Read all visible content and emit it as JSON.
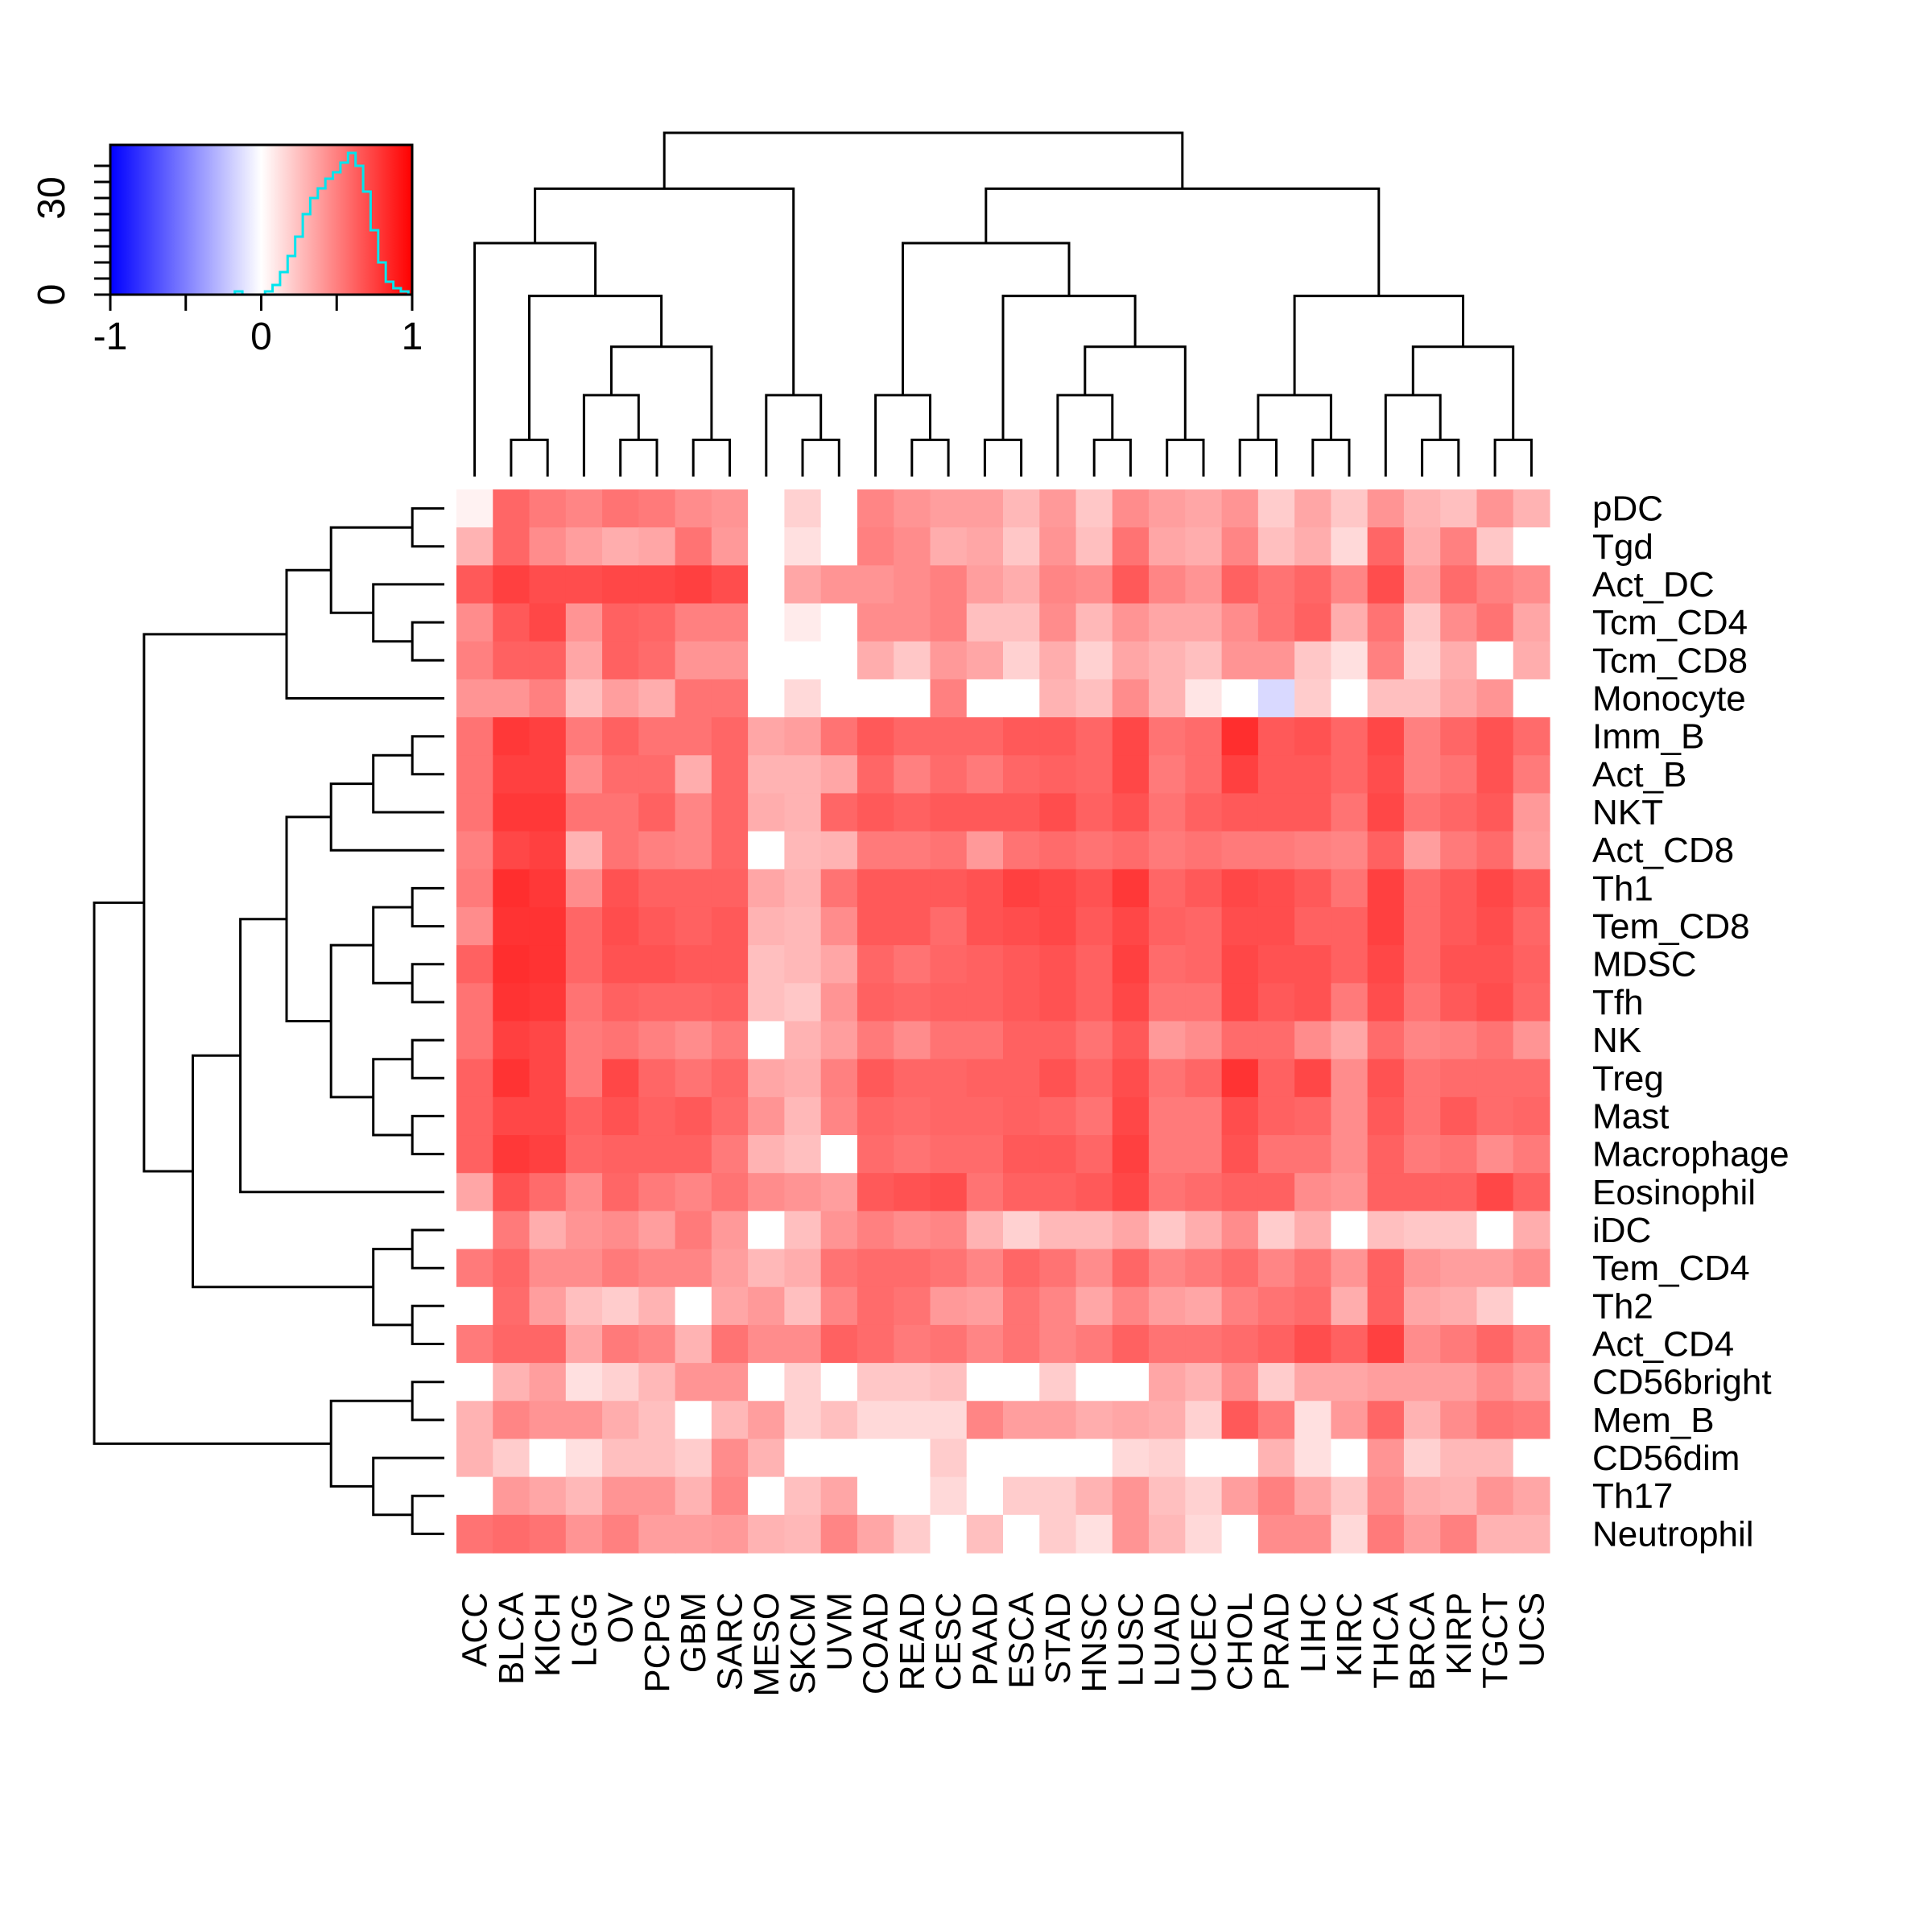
{
  "chart_data": {
    "type": "heatmap",
    "title": "",
    "columns": [
      "ACC",
      "BLCA",
      "KICH",
      "LGG",
      "OV",
      "PCPG",
      "GBM",
      "SARC",
      "MESO",
      "SKCM",
      "UVM",
      "COAD",
      "READ",
      "CESC",
      "PAAD",
      "ESCA",
      "STAD",
      "HNSC",
      "LUSC",
      "LUAD",
      "UCEC",
      "CHOL",
      "PRAD",
      "LIHC",
      "KIRC",
      "THCA",
      "BRCA",
      "KIRP",
      "TGCT",
      "UCS"
    ],
    "rows": [
      "pDC",
      "Tgd",
      "Act_DC",
      "Tcm_CD4",
      "Tcm_CD8",
      "Monocyte",
      "Imm_B",
      "Act_B",
      "NKT",
      "Act_CD8",
      "Th1",
      "Tem_CD8",
      "MDSC",
      "Tfh",
      "NK",
      "Treg",
      "Mast",
      "Macrophage",
      "Eosinophil",
      "iDC",
      "Tem_CD4",
      "Th2",
      "Act_CD4",
      "CD56bright",
      "Mem_B",
      "CD56dim",
      "Th17",
      "Neutrophil"
    ],
    "values": [
      [
        0.05,
        0.6,
        0.52,
        0.48,
        0.55,
        0.52,
        0.45,
        0.42,
        0.0,
        0.18,
        0.0,
        0.48,
        0.42,
        0.38,
        0.38,
        0.28,
        0.4,
        0.22,
        0.45,
        0.38,
        0.35,
        0.42,
        0.2,
        0.35,
        0.22,
        0.42,
        0.3,
        0.25,
        0.42,
        0.3
      ],
      [
        0.3,
        0.6,
        0.45,
        0.38,
        0.32,
        0.35,
        0.55,
        0.4,
        0.0,
        0.12,
        0.0,
        0.5,
        0.45,
        0.32,
        0.35,
        0.22,
        0.42,
        0.25,
        0.55,
        0.35,
        0.32,
        0.48,
        0.25,
        0.32,
        0.15,
        0.6,
        0.32,
        0.5,
        0.22,
        0.0
      ],
      [
        0.65,
        0.75,
        0.7,
        0.7,
        0.72,
        0.72,
        0.75,
        0.7,
        0.0,
        0.35,
        0.42,
        0.42,
        0.45,
        0.5,
        0.38,
        0.32,
        0.48,
        0.45,
        0.65,
        0.48,
        0.42,
        0.62,
        0.55,
        0.6,
        0.48,
        0.7,
        0.38,
        0.58,
        0.5,
        0.45
      ],
      [
        0.45,
        0.65,
        0.72,
        0.42,
        0.62,
        0.6,
        0.5,
        0.5,
        0.0,
        0.08,
        0.0,
        0.45,
        0.45,
        0.5,
        0.25,
        0.25,
        0.45,
        0.28,
        0.42,
        0.35,
        0.35,
        0.45,
        0.55,
        0.62,
        0.32,
        0.55,
        0.22,
        0.45,
        0.55,
        0.35
      ],
      [
        0.5,
        0.62,
        0.62,
        0.35,
        0.62,
        0.58,
        0.42,
        0.42,
        0.0,
        0.0,
        0.0,
        0.32,
        0.22,
        0.4,
        0.35,
        0.18,
        0.32,
        0.18,
        0.35,
        0.3,
        0.25,
        0.42,
        0.42,
        0.22,
        0.12,
        0.5,
        0.18,
        0.32,
        0.0,
        0.32
      ],
      [
        0.42,
        0.42,
        0.5,
        0.25,
        0.38,
        0.32,
        0.55,
        0.55,
        0.0,
        0.15,
        0.0,
        0.0,
        0.0,
        0.5,
        0.0,
        0.0,
        0.3,
        0.25,
        0.45,
        0.3,
        0.1,
        0.0,
        -0.15,
        0.2,
        0.0,
        0.25,
        0.25,
        0.35,
        0.42,
        0.0
      ],
      [
        0.55,
        0.78,
        0.75,
        0.52,
        0.62,
        0.55,
        0.55,
        0.6,
        0.35,
        0.38,
        0.55,
        0.65,
        0.6,
        0.6,
        0.6,
        0.65,
        0.65,
        0.6,
        0.72,
        0.55,
        0.58,
        0.82,
        0.65,
        0.68,
        0.6,
        0.72,
        0.5,
        0.6,
        0.68,
        0.58
      ],
      [
        0.55,
        0.75,
        0.75,
        0.45,
        0.58,
        0.58,
        0.32,
        0.6,
        0.3,
        0.3,
        0.35,
        0.6,
        0.5,
        0.58,
        0.52,
        0.6,
        0.62,
        0.6,
        0.72,
        0.52,
        0.58,
        0.75,
        0.65,
        0.65,
        0.6,
        0.7,
        0.5,
        0.55,
        0.68,
        0.52
      ],
      [
        0.55,
        0.78,
        0.78,
        0.55,
        0.55,
        0.62,
        0.48,
        0.6,
        0.32,
        0.3,
        0.6,
        0.65,
        0.62,
        0.65,
        0.65,
        0.65,
        0.7,
        0.62,
        0.68,
        0.55,
        0.62,
        0.65,
        0.65,
        0.65,
        0.55,
        0.72,
        0.55,
        0.6,
        0.65,
        0.4
      ],
      [
        0.5,
        0.72,
        0.75,
        0.3,
        0.55,
        0.5,
        0.48,
        0.6,
        0.0,
        0.28,
        0.3,
        0.52,
        0.52,
        0.55,
        0.4,
        0.55,
        0.58,
        0.55,
        0.58,
        0.52,
        0.55,
        0.52,
        0.52,
        0.5,
        0.48,
        0.62,
        0.38,
        0.52,
        0.58,
        0.38
      ],
      [
        0.52,
        0.82,
        0.78,
        0.45,
        0.68,
        0.62,
        0.62,
        0.62,
        0.35,
        0.3,
        0.55,
        0.65,
        0.65,
        0.65,
        0.68,
        0.75,
        0.72,
        0.68,
        0.78,
        0.6,
        0.65,
        0.72,
        0.7,
        0.65,
        0.55,
        0.75,
        0.58,
        0.65,
        0.72,
        0.65
      ],
      [
        0.45,
        0.8,
        0.8,
        0.6,
        0.7,
        0.65,
        0.62,
        0.65,
        0.3,
        0.28,
        0.45,
        0.65,
        0.65,
        0.58,
        0.68,
        0.7,
        0.72,
        0.65,
        0.72,
        0.62,
        0.6,
        0.7,
        0.7,
        0.62,
        0.62,
        0.75,
        0.58,
        0.65,
        0.7,
        0.6
      ],
      [
        0.62,
        0.82,
        0.8,
        0.6,
        0.68,
        0.68,
        0.65,
        0.65,
        0.25,
        0.28,
        0.35,
        0.6,
        0.55,
        0.6,
        0.62,
        0.65,
        0.68,
        0.62,
        0.75,
        0.58,
        0.6,
        0.72,
        0.68,
        0.68,
        0.62,
        0.72,
        0.58,
        0.68,
        0.68,
        0.62
      ],
      [
        0.55,
        0.8,
        0.78,
        0.55,
        0.62,
        0.6,
        0.6,
        0.62,
        0.25,
        0.22,
        0.42,
        0.62,
        0.6,
        0.62,
        0.62,
        0.65,
        0.68,
        0.62,
        0.72,
        0.55,
        0.55,
        0.72,
        0.65,
        0.68,
        0.52,
        0.7,
        0.55,
        0.65,
        0.7,
        0.6
      ],
      [
        0.55,
        0.75,
        0.72,
        0.52,
        0.55,
        0.5,
        0.45,
        0.52,
        0.0,
        0.3,
        0.38,
        0.52,
        0.45,
        0.55,
        0.55,
        0.62,
        0.62,
        0.55,
        0.65,
        0.4,
        0.45,
        0.58,
        0.58,
        0.45,
        0.35,
        0.58,
        0.48,
        0.5,
        0.55,
        0.42
      ],
      [
        0.62,
        0.8,
        0.72,
        0.52,
        0.72,
        0.6,
        0.55,
        0.6,
        0.35,
        0.32,
        0.5,
        0.65,
        0.6,
        0.6,
        0.62,
        0.62,
        0.68,
        0.6,
        0.7,
        0.55,
        0.6,
        0.8,
        0.62,
        0.72,
        0.45,
        0.68,
        0.55,
        0.58,
        0.58,
        0.58
      ],
      [
        0.62,
        0.72,
        0.72,
        0.62,
        0.68,
        0.62,
        0.65,
        0.58,
        0.42,
        0.28,
        0.48,
        0.6,
        0.58,
        0.6,
        0.6,
        0.62,
        0.6,
        0.55,
        0.72,
        0.52,
        0.52,
        0.7,
        0.62,
        0.6,
        0.45,
        0.65,
        0.55,
        0.65,
        0.58,
        0.6
      ],
      [
        0.62,
        0.78,
        0.75,
        0.6,
        0.62,
        0.62,
        0.62,
        0.52,
        0.3,
        0.25,
        0.0,
        0.58,
        0.55,
        0.58,
        0.58,
        0.65,
        0.65,
        0.6,
        0.75,
        0.52,
        0.52,
        0.68,
        0.55,
        0.55,
        0.45,
        0.62,
        0.52,
        0.55,
        0.45,
        0.52
      ],
      [
        0.35,
        0.68,
        0.58,
        0.45,
        0.6,
        0.52,
        0.48,
        0.55,
        0.45,
        0.42,
        0.38,
        0.65,
        0.68,
        0.7,
        0.55,
        0.62,
        0.62,
        0.65,
        0.72,
        0.55,
        0.58,
        0.62,
        0.62,
        0.45,
        0.42,
        0.62,
        0.62,
        0.62,
        0.72,
        0.62
      ],
      [
        0.0,
        0.52,
        0.32,
        0.42,
        0.45,
        0.38,
        0.52,
        0.4,
        0.0,
        0.25,
        0.42,
        0.5,
        0.45,
        0.48,
        0.3,
        0.18,
        0.28,
        0.28,
        0.35,
        0.22,
        0.32,
        0.45,
        0.2,
        0.32,
        0.0,
        0.25,
        0.22,
        0.22,
        0.0,
        0.32
      ],
      [
        0.52,
        0.6,
        0.45,
        0.45,
        0.52,
        0.48,
        0.48,
        0.38,
        0.28,
        0.32,
        0.55,
        0.58,
        0.58,
        0.55,
        0.48,
        0.6,
        0.55,
        0.45,
        0.6,
        0.48,
        0.52,
        0.58,
        0.48,
        0.55,
        0.42,
        0.62,
        0.42,
        0.38,
        0.38,
        0.45
      ],
      [
        0.0,
        0.58,
        0.38,
        0.25,
        0.2,
        0.3,
        0.0,
        0.35,
        0.4,
        0.25,
        0.48,
        0.58,
        0.55,
        0.4,
        0.38,
        0.55,
        0.48,
        0.35,
        0.48,
        0.38,
        0.35,
        0.5,
        0.55,
        0.58,
        0.32,
        0.62,
        0.35,
        0.32,
        0.2,
        0.0
      ],
      [
        0.52,
        0.6,
        0.6,
        0.35,
        0.52,
        0.48,
        0.3,
        0.55,
        0.45,
        0.45,
        0.62,
        0.58,
        0.52,
        0.55,
        0.48,
        0.55,
        0.48,
        0.52,
        0.62,
        0.55,
        0.55,
        0.58,
        0.62,
        0.7,
        0.62,
        0.75,
        0.45,
        0.52,
        0.6,
        0.5
      ],
      [
        0.0,
        0.3,
        0.38,
        0.12,
        0.18,
        0.28,
        0.42,
        0.42,
        0.0,
        0.18,
        0.0,
        0.22,
        0.22,
        0.25,
        0.0,
        0.0,
        0.2,
        0.0,
        0.0,
        0.35,
        0.3,
        0.45,
        0.2,
        0.35,
        0.35,
        0.38,
        0.38,
        0.38,
        0.45,
        0.38
      ],
      [
        0.3,
        0.48,
        0.42,
        0.42,
        0.32,
        0.25,
        0.0,
        0.28,
        0.38,
        0.18,
        0.25,
        0.15,
        0.15,
        0.15,
        0.48,
        0.38,
        0.38,
        0.32,
        0.35,
        0.32,
        0.18,
        0.65,
        0.52,
        0.12,
        0.4,
        0.6,
        0.3,
        0.45,
        0.55,
        0.52
      ],
      [
        0.3,
        0.2,
        0.0,
        0.12,
        0.25,
        0.25,
        0.2,
        0.45,
        0.3,
        0.0,
        0.0,
        0.0,
        0.0,
        0.2,
        0.0,
        0.0,
        0.0,
        0.0,
        0.15,
        0.18,
        0.0,
        0.0,
        0.3,
        0.12,
        0.0,
        0.42,
        0.18,
        0.28,
        0.28,
        0.0
      ],
      [
        0.0,
        0.4,
        0.35,
        0.28,
        0.42,
        0.42,
        0.3,
        0.48,
        0.0,
        0.25,
        0.35,
        0.0,
        0.0,
        0.15,
        0.0,
        0.2,
        0.2,
        0.3,
        0.42,
        0.25,
        0.18,
        0.38,
        0.5,
        0.35,
        0.22,
        0.45,
        0.32,
        0.3,
        0.42,
        0.35
      ],
      [
        0.55,
        0.58,
        0.55,
        0.42,
        0.5,
        0.38,
        0.38,
        0.4,
        0.3,
        0.28,
        0.48,
        0.35,
        0.2,
        0.0,
        0.25,
        0.0,
        0.2,
        0.12,
        0.42,
        0.28,
        0.15,
        0.0,
        0.45,
        0.45,
        0.15,
        0.52,
        0.38,
        0.5,
        0.3,
        0.3
      ]
    ],
    "color_scale": {
      "min": -1,
      "max": 1,
      "low_color": "#0000FF",
      "mid_color": "#FFFFFF",
      "high_color": "#FF0000",
      "ticks": [
        "-1",
        "0",
        "1"
      ]
    },
    "histogram": {
      "color": "#00E5EE",
      "y_ticks": [
        "0",
        "30"
      ],
      "y_max": 45,
      "bin_centers": [
        -0.15,
        -0.1,
        -0.05,
        0.0,
        0.05,
        0.1,
        0.15,
        0.2,
        0.25,
        0.3,
        0.35,
        0.4,
        0.45,
        0.5,
        0.55,
        0.6,
        0.65,
        0.7,
        0.75,
        0.8,
        0.85,
        0.9,
        0.95
      ],
      "counts": [
        1,
        0,
        0,
        0,
        1,
        3,
        7,
        12,
        18,
        25,
        30,
        33,
        36,
        38,
        41,
        44,
        40,
        32,
        20,
        10,
        4,
        2,
        1
      ]
    }
  }
}
